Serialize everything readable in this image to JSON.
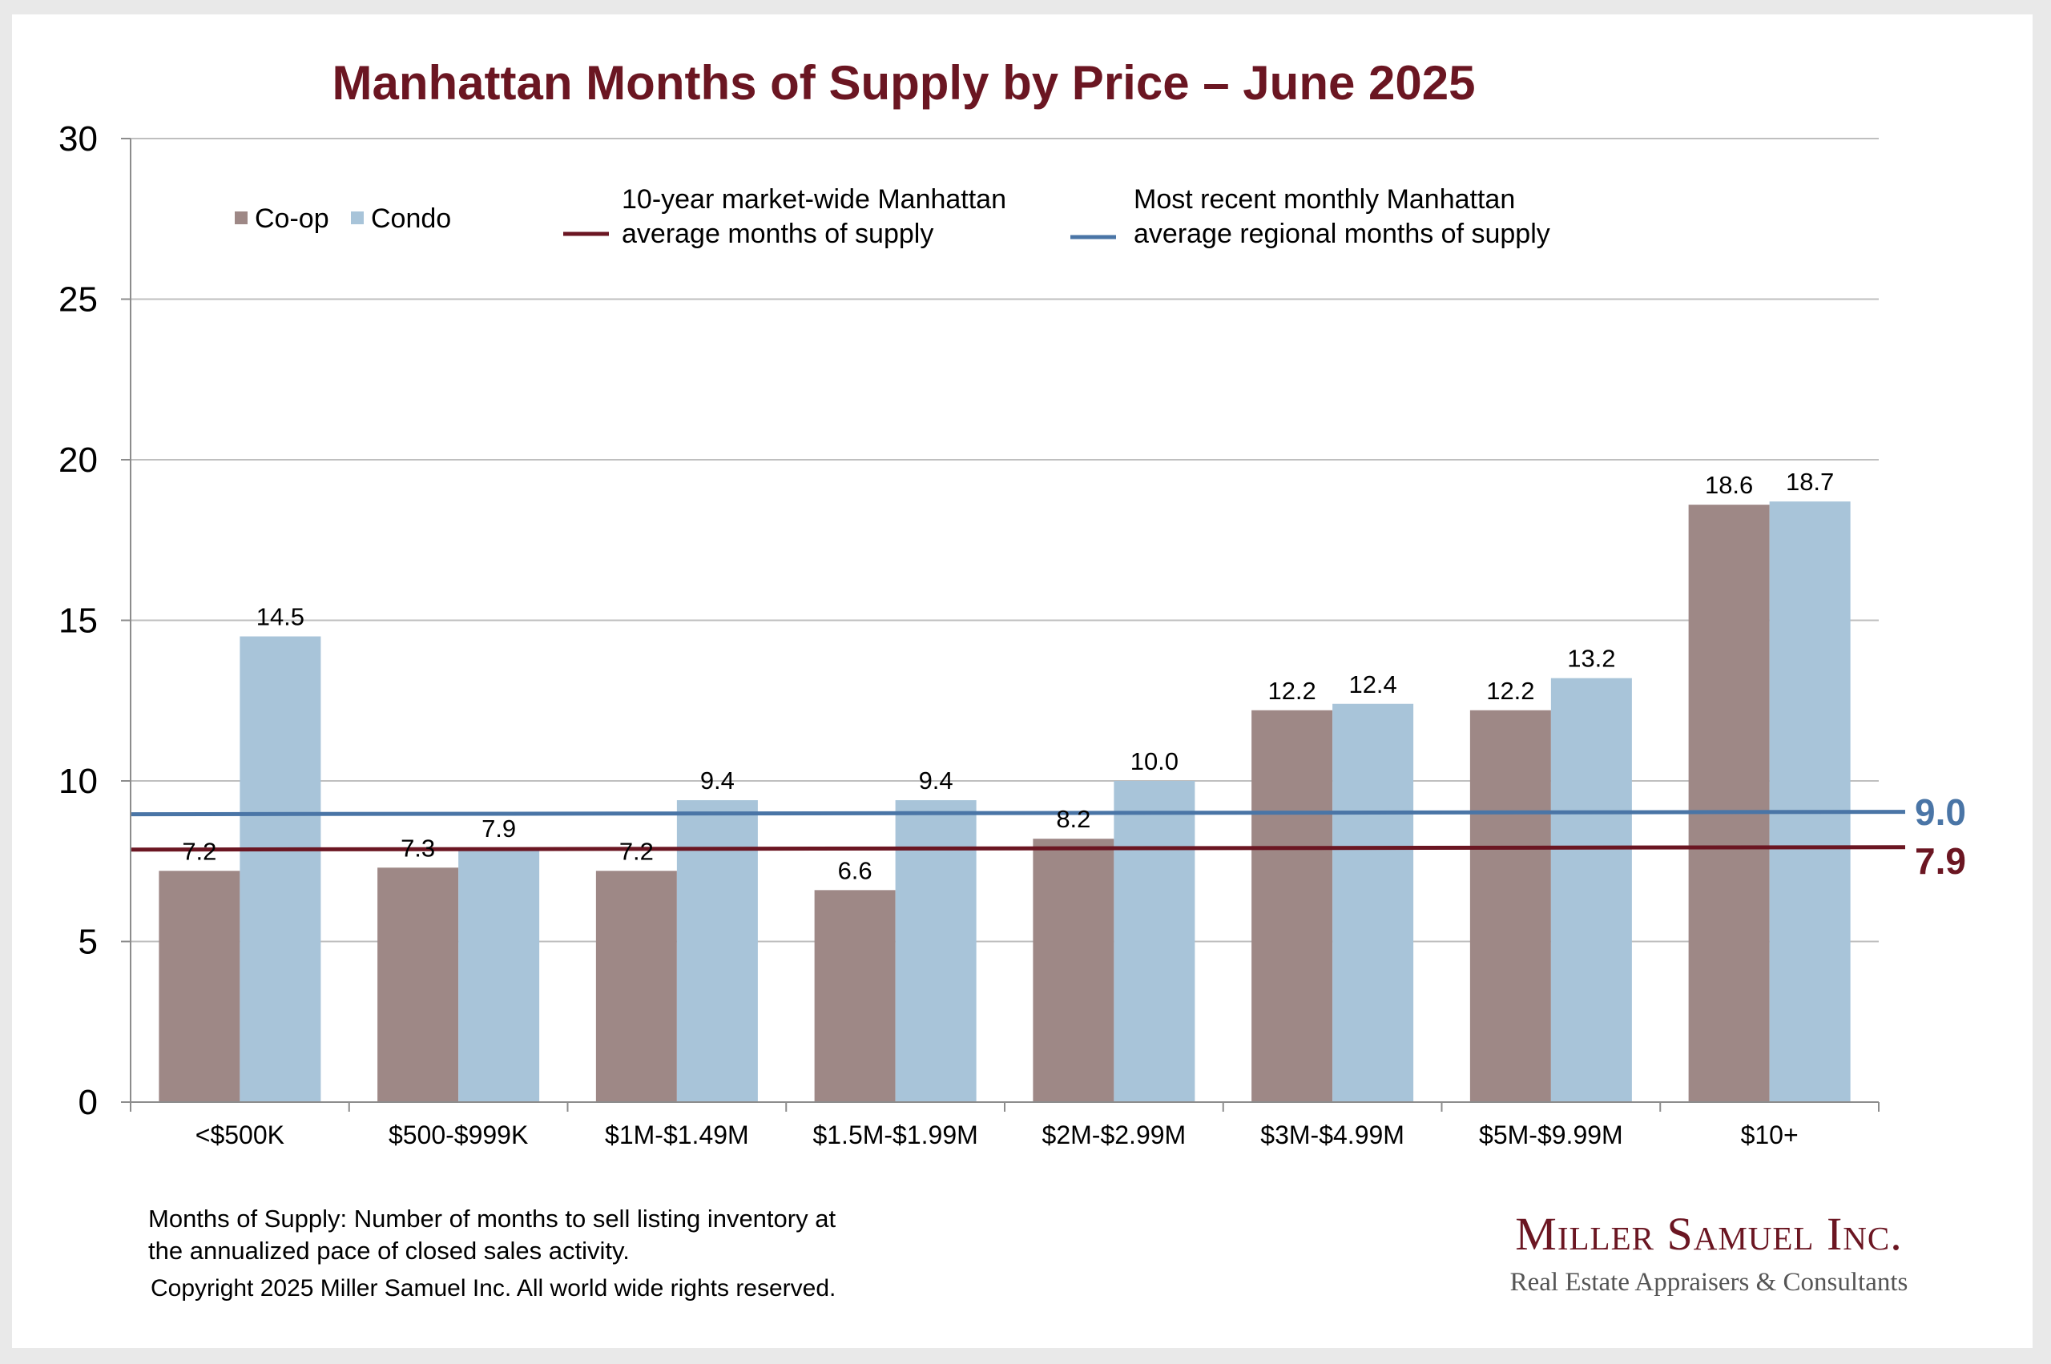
{
  "chart_data": {
    "type": "bar",
    "title": "Manhattan Months of Supply by Price – June 2025",
    "categories": [
      "<$500K",
      "$500-$999K",
      "$1M-$1.49M",
      "$1.5M-$1.99M",
      "$2M-$2.99M",
      "$3M-$4.99M",
      "$5M-$9.99M",
      "$10+"
    ],
    "series": [
      {
        "name": "Co-op",
        "color": "#9e8886",
        "values": [
          7.2,
          7.3,
          7.2,
          6.6,
          8.2,
          12.2,
          12.2,
          18.6
        ],
        "labels": [
          "7.2",
          "7.3",
          "7.2",
          "6.6",
          "8.2",
          "12.2",
          "12.2",
          "18.6"
        ]
      },
      {
        "name": "Condo",
        "color": "#a8c4d9",
        "values": [
          14.5,
          7.9,
          9.4,
          9.4,
          10.0,
          12.4,
          13.2,
          18.7
        ],
        "labels": [
          "14.5",
          "7.9",
          "9.4",
          "9.4",
          "10.0",
          "12.4",
          "13.2",
          "18.7"
        ]
      }
    ],
    "reference_lines": [
      {
        "name": "Most recent monthly Manhattan average regional months of supply",
        "line1": "Most recent monthly Manhattan",
        "line2": "average regional months of supply",
        "value": 9.0,
        "label": "9.0",
        "color": "#4a75a6"
      },
      {
        "name": "10-year market-wide Manhattan average months of supply",
        "line1": "10-year market-wide Manhattan",
        "line2": "average months of supply",
        "value": 7.9,
        "label": "7.9",
        "color": "#6b1622"
      }
    ],
    "yticks": [
      "0",
      "5",
      "10",
      "15",
      "20",
      "25",
      "30"
    ],
    "ylim": [
      0,
      30
    ],
    "grid": true,
    "legend_position": "top",
    "xlabel": "",
    "ylabel": ""
  },
  "footer": {
    "note_line1": "Months of Supply: Number of months to sell listing inventory at",
    "note_line2": "the annualized pace of closed sales activity.",
    "copyright": "Copyright 2025 Miller Samuel Inc.  All world wide rights reserved."
  },
  "brand": {
    "name": "Miller Samuel Inc.",
    "tagline": "Real Estate Appraisers & Consultants"
  },
  "colors": {
    "title": "#6b1622",
    "grid": "#bfbfbf",
    "axis": "#8c8c8c"
  }
}
